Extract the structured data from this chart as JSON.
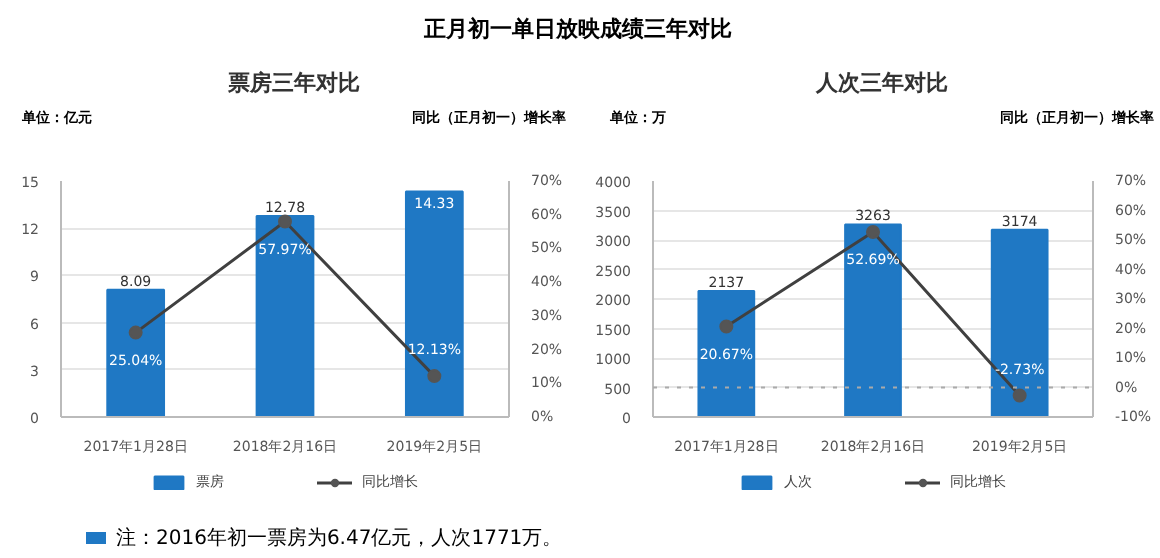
{
  "chart_data": [
    {
      "type": "other",
      "title": "正月初一单日放映成绩三年对比",
      "annotations": [
        "注：2016年初一票房为6.47亿元，人次1771万。"
      ]
    },
    {
      "type": "bar",
      "title": "票房三年对比",
      "ylabel": "单位：亿元",
      "y2label": "同比（正月初一）增长率",
      "categories": [
        "2017年1月28日",
        "2018年2月16日",
        "2019年2月5日"
      ],
      "series": [
        {
          "name": "票房",
          "type": "bar",
          "color": "#1f78c4",
          "values": [
            8.09,
            12.78,
            14.33
          ],
          "value_labels": [
            "8.09",
            "12.78",
            "14.33"
          ]
        },
        {
          "name": "同比增长",
          "type": "line",
          "axis": "y2",
          "color": "#404040",
          "values": [
            25.04,
            57.97,
            12.13
          ],
          "value_labels": [
            "25.04%",
            "57.97%",
            "12.13%"
          ]
        }
      ],
      "ylim": [
        0,
        15
      ],
      "yticks": [
        0,
        3,
        6,
        9,
        12,
        15
      ],
      "y2lim": [
        0,
        70
      ],
      "y2ticks": [
        {
          "value": 0,
          "label": "0%"
        },
        {
          "value": 10,
          "label": "10%"
        },
        {
          "value": 20,
          "label": "20%"
        },
        {
          "value": 30,
          "label": "30%"
        },
        {
          "value": 40,
          "label": "40%"
        },
        {
          "value": 50,
          "label": "50%"
        },
        {
          "value": 60,
          "label": "60%"
        },
        {
          "value": 70,
          "label": "70%"
        }
      ],
      "grid": "y",
      "legend": "bottom",
      "marker": "circle"
    },
    {
      "type": "bar",
      "title": "人次三年对比",
      "ylabel": "单位：万",
      "y2label": "同比（正月初一）增长率",
      "categories": [
        "2017年1月28日",
        "2018年2月16日",
        "2019年2月5日"
      ],
      "series": [
        {
          "name": "人次",
          "type": "bar",
          "color": "#1f78c4",
          "values": [
            2137,
            3263,
            3174
          ],
          "value_labels": [
            "2137",
            "3263",
            "3174"
          ]
        },
        {
          "name": "同比增长",
          "type": "line",
          "axis": "y2",
          "color": "#404040",
          "values": [
            20.67,
            52.69,
            -2.73
          ],
          "value_labels": [
            "20.67%",
            "52.69%",
            "-2.73%"
          ]
        }
      ],
      "ylim": [
        0,
        4000
      ],
      "yticks": [
        0,
        500,
        1000,
        1500,
        2000,
        2500,
        3000,
        3500,
        4000
      ],
      "y2lim": [
        -10,
        70
      ],
      "y2ticks": [
        {
          "value": -10,
          "label": "-10%"
        },
        {
          "value": 0,
          "label": "0%"
        },
        {
          "value": 10,
          "label": "10%"
        },
        {
          "value": 20,
          "label": "20%"
        },
        {
          "value": 30,
          "label": "30%"
        },
        {
          "value": 40,
          "label": "40%"
        },
        {
          "value": 50,
          "label": "50%"
        },
        {
          "value": 60,
          "label": "60%"
        },
        {
          "value": 70,
          "label": "70%"
        }
      ],
      "ref_lines": [
        {
          "axis": "y2",
          "value": 0,
          "color": "#aaaaaa",
          "line_style": "dotted"
        }
      ],
      "grid": "y",
      "legend": "bottom",
      "marker": "circle"
    }
  ]
}
